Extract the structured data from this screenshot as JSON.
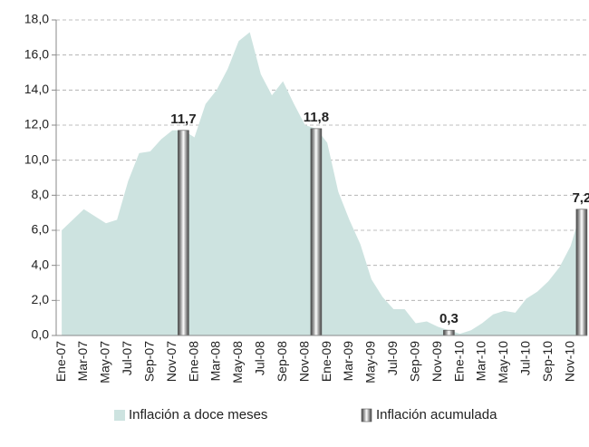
{
  "chart_data": {
    "type": "area",
    "categories": [
      "Ene-07",
      null,
      "Mar-07",
      null,
      "May-07",
      null,
      "Jul-07",
      null,
      "Sep-07",
      null,
      "Nov-07",
      null,
      "Ene-08",
      null,
      "Mar-08",
      null,
      "May-08",
      null,
      "Jul-08",
      null,
      "Sep-08",
      null,
      "Nov-08",
      null,
      "Ene-09",
      null,
      "Mar-09",
      null,
      "May-09",
      null,
      "Jul-09",
      null,
      "Sep-09",
      null,
      "Nov-09",
      null,
      "Ene-10",
      null,
      "Mar-10",
      null,
      "May-10",
      null,
      "Jul-10",
      null,
      "Sep-10",
      null,
      "Nov-10",
      null
    ],
    "series": [
      {
        "name": "Inflación a doce meses",
        "color": "#cde3e0",
        "values": [
          6.0,
          6.6,
          7.2,
          6.8,
          6.4,
          6.6,
          8.8,
          10.4,
          10.5,
          11.2,
          11.7,
          11.7,
          11.3,
          13.2,
          14.0,
          15.2,
          16.8,
          17.3,
          14.9,
          13.7,
          14.5,
          13.2,
          12.0,
          11.8,
          11.0,
          8.2,
          6.6,
          5.2,
          3.2,
          2.2,
          1.5,
          1.5,
          0.7,
          0.8,
          0.5,
          0.3,
          0.1,
          0.3,
          0.7,
          1.2,
          1.4,
          1.3,
          2.1,
          2.5,
          3.1,
          3.9,
          5.1,
          7.2
        ]
      },
      {
        "name": "Inflación acumulada",
        "type": "bar",
        "color": "#555555",
        "values": [
          null,
          null,
          null,
          null,
          null,
          null,
          null,
          null,
          null,
          null,
          null,
          11.7,
          null,
          null,
          null,
          null,
          null,
          null,
          null,
          null,
          null,
          null,
          null,
          11.8,
          null,
          null,
          null,
          null,
          null,
          null,
          null,
          null,
          null,
          null,
          null,
          0.3,
          null,
          null,
          null,
          null,
          null,
          null,
          null,
          null,
          null,
          null,
          null,
          7.2
        ],
        "value_labels": [
          null,
          null,
          null,
          null,
          null,
          null,
          null,
          null,
          null,
          null,
          null,
          "11,7",
          null,
          null,
          null,
          null,
          null,
          null,
          null,
          null,
          null,
          null,
          null,
          "11,8",
          null,
          null,
          null,
          null,
          null,
          null,
          null,
          null,
          null,
          null,
          null,
          "0,3",
          null,
          null,
          null,
          null,
          null,
          null,
          null,
          null,
          null,
          null,
          null,
          "7,2"
        ]
      }
    ],
    "ylim": [
      0,
      18
    ],
    "yticks": [
      {
        "value": 0,
        "label": "0,0"
      },
      {
        "value": 2,
        "label": "2,0"
      },
      {
        "value": 4,
        "label": "4,0"
      },
      {
        "value": 6,
        "label": "6,0"
      },
      {
        "value": 8,
        "label": "8,0"
      },
      {
        "value": 10,
        "label": "10,0"
      },
      {
        "value": 12,
        "label": "12,0"
      },
      {
        "value": 14,
        "label": "14,0"
      },
      {
        "value": 16,
        "label": "16,0"
      },
      {
        "value": 18,
        "label": "18,0"
      }
    ],
    "grid": true,
    "legend": "bottom"
  }
}
